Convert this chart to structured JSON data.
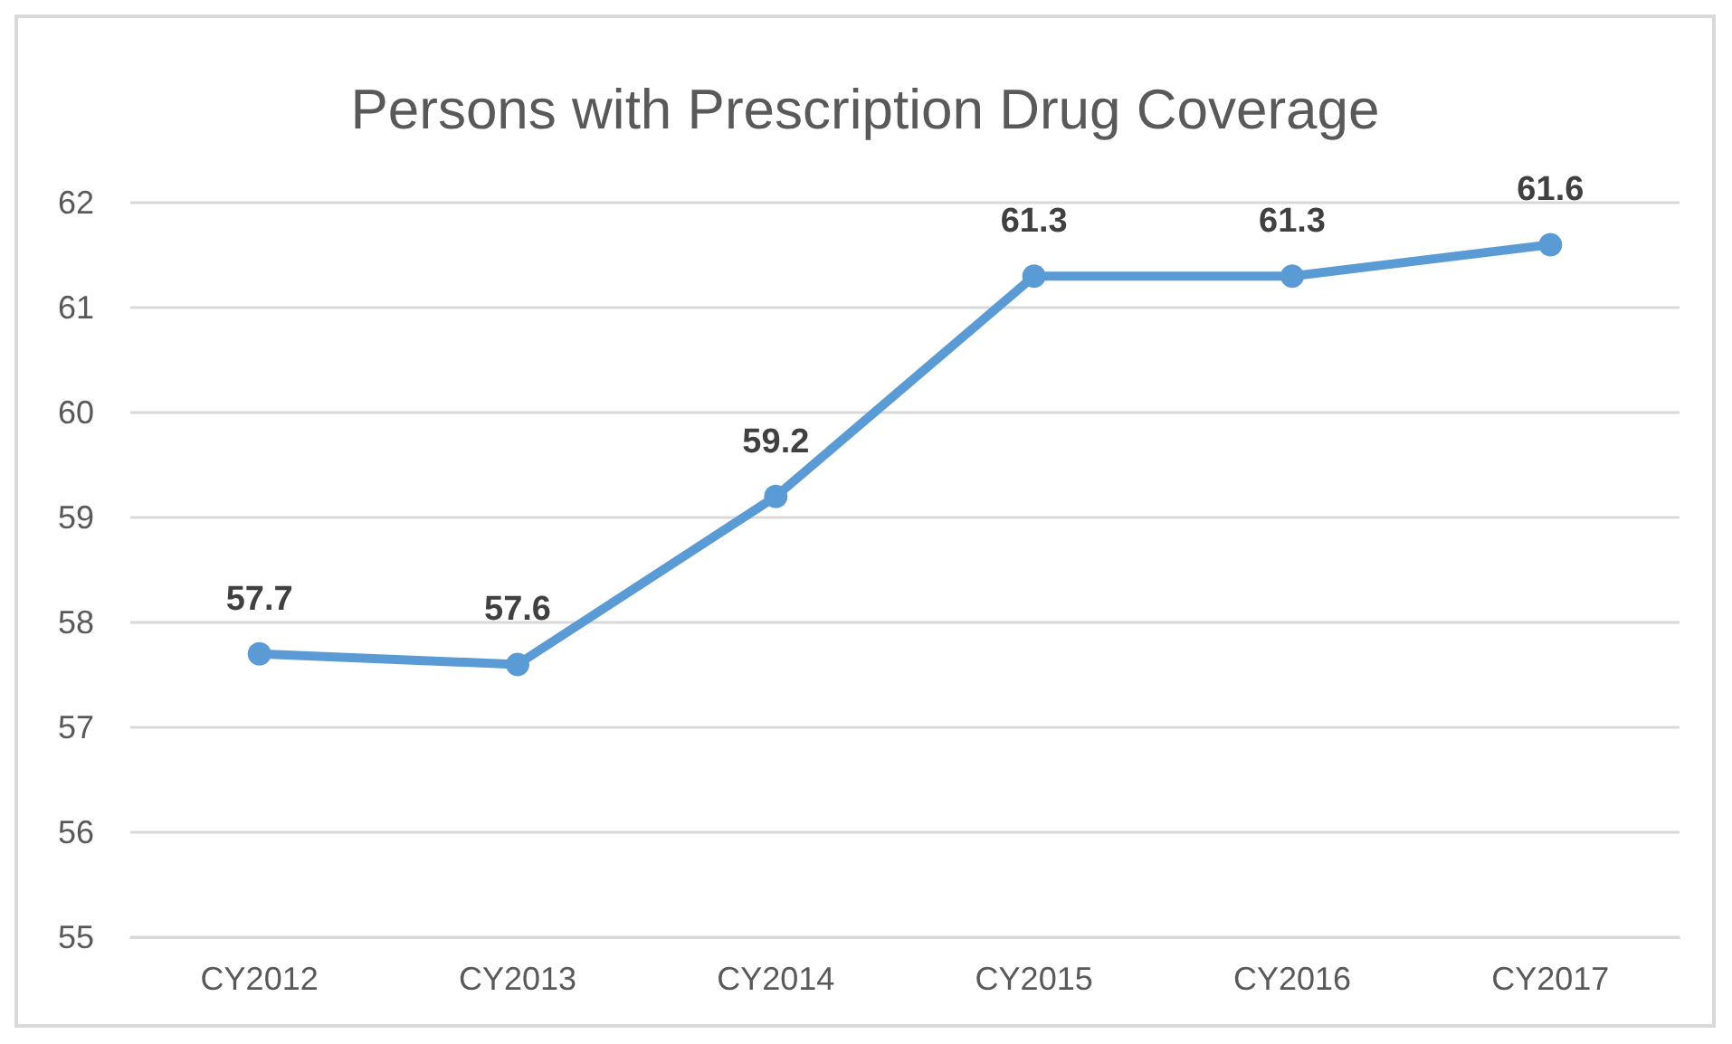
{
  "chart_data": {
    "type": "line",
    "title": "Persons with Prescription Drug Coverage",
    "categories": [
      "CY2012",
      "CY2013",
      "CY2014",
      "CY2015",
      "CY2016",
      "CY2017"
    ],
    "series": [
      {
        "color": "#5b9bd5",
        "values": [
          57.7,
          57.6,
          59.2,
          61.3,
          61.3,
          61.6
        ]
      }
    ],
    "ylim": [
      55,
      62
    ],
    "yticks": [
      55,
      56,
      57,
      58,
      59,
      60,
      61,
      62
    ],
    "grid": "y",
    "marker": "circle",
    "line_style": "solid",
    "data_labels": true
  }
}
